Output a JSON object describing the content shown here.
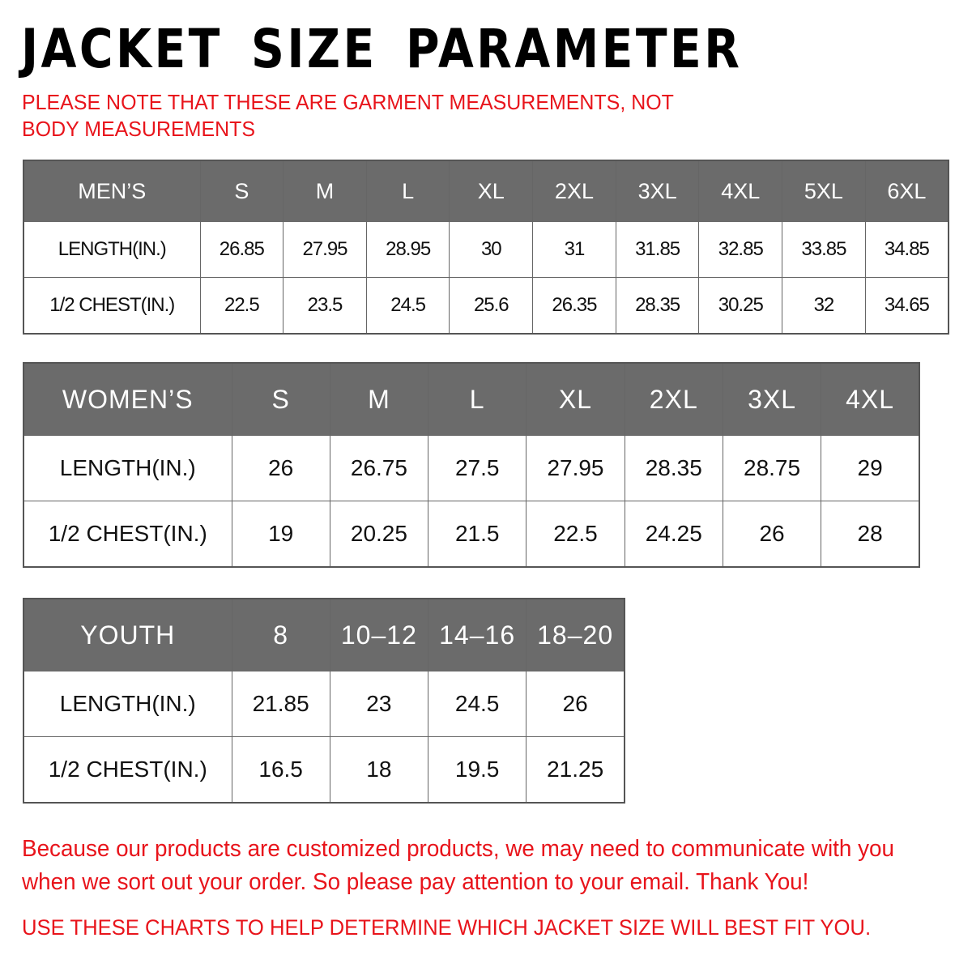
{
  "title": "JACKET SIZE PARAMETER",
  "note": "PLEASE NOTE THAT THESE ARE GARMENT MEASUREMENTS, NOT BODY MEASUREMENTS",
  "tables": {
    "men": {
      "header": [
        "MEN’S",
        "S",
        "M",
        "L",
        "XL",
        "2XL",
        "3XL",
        "4XL",
        "5XL",
        "6XL"
      ],
      "rows": [
        [
          "LENGTH(IN.)",
          "26.85",
          "27.95",
          "28.95",
          "30",
          "31",
          "31.85",
          "32.85",
          "33.85",
          "34.85"
        ],
        [
          "1/2 CHEST(IN.)",
          "22.5",
          "23.5",
          "24.5",
          "25.6",
          "26.35",
          "28.35",
          "30.25",
          "32",
          "34.65"
        ]
      ]
    },
    "women": {
      "header": [
        "WOMEN’S",
        "S",
        "M",
        "L",
        "XL",
        "2XL",
        "3XL",
        "4XL"
      ],
      "rows": [
        [
          "LENGTH(IN.)",
          "26",
          "26.75",
          "27.5",
          "27.95",
          "28.35",
          "28.75",
          "29"
        ],
        [
          "1/2 CHEST(IN.)",
          "19",
          "20.25",
          "21.5",
          "22.5",
          "24.25",
          "26",
          "28"
        ]
      ]
    },
    "youth": {
      "header": [
        "YOUTH",
        "8",
        "10–12",
        "14–16",
        "18–20"
      ],
      "rows": [
        [
          "LENGTH(IN.)",
          "21.85",
          "23",
          "24.5",
          "26"
        ],
        [
          "1/2 CHEST(IN.)",
          "16.5",
          "18",
          "19.5",
          "21.25"
        ]
      ]
    }
  },
  "message": "Because our products are customized products, we may need to communicate with you when we sort out your order. So please pay attention to your email. Thank You!",
  "footer": "USE THESE CHARTS TO HELP DETERMINE WHICH JACKET SIZE WILL BEST FIT YOU.",
  "colors": {
    "header_bg": "#6b6b6b",
    "accent_red": "#e8141b"
  }
}
